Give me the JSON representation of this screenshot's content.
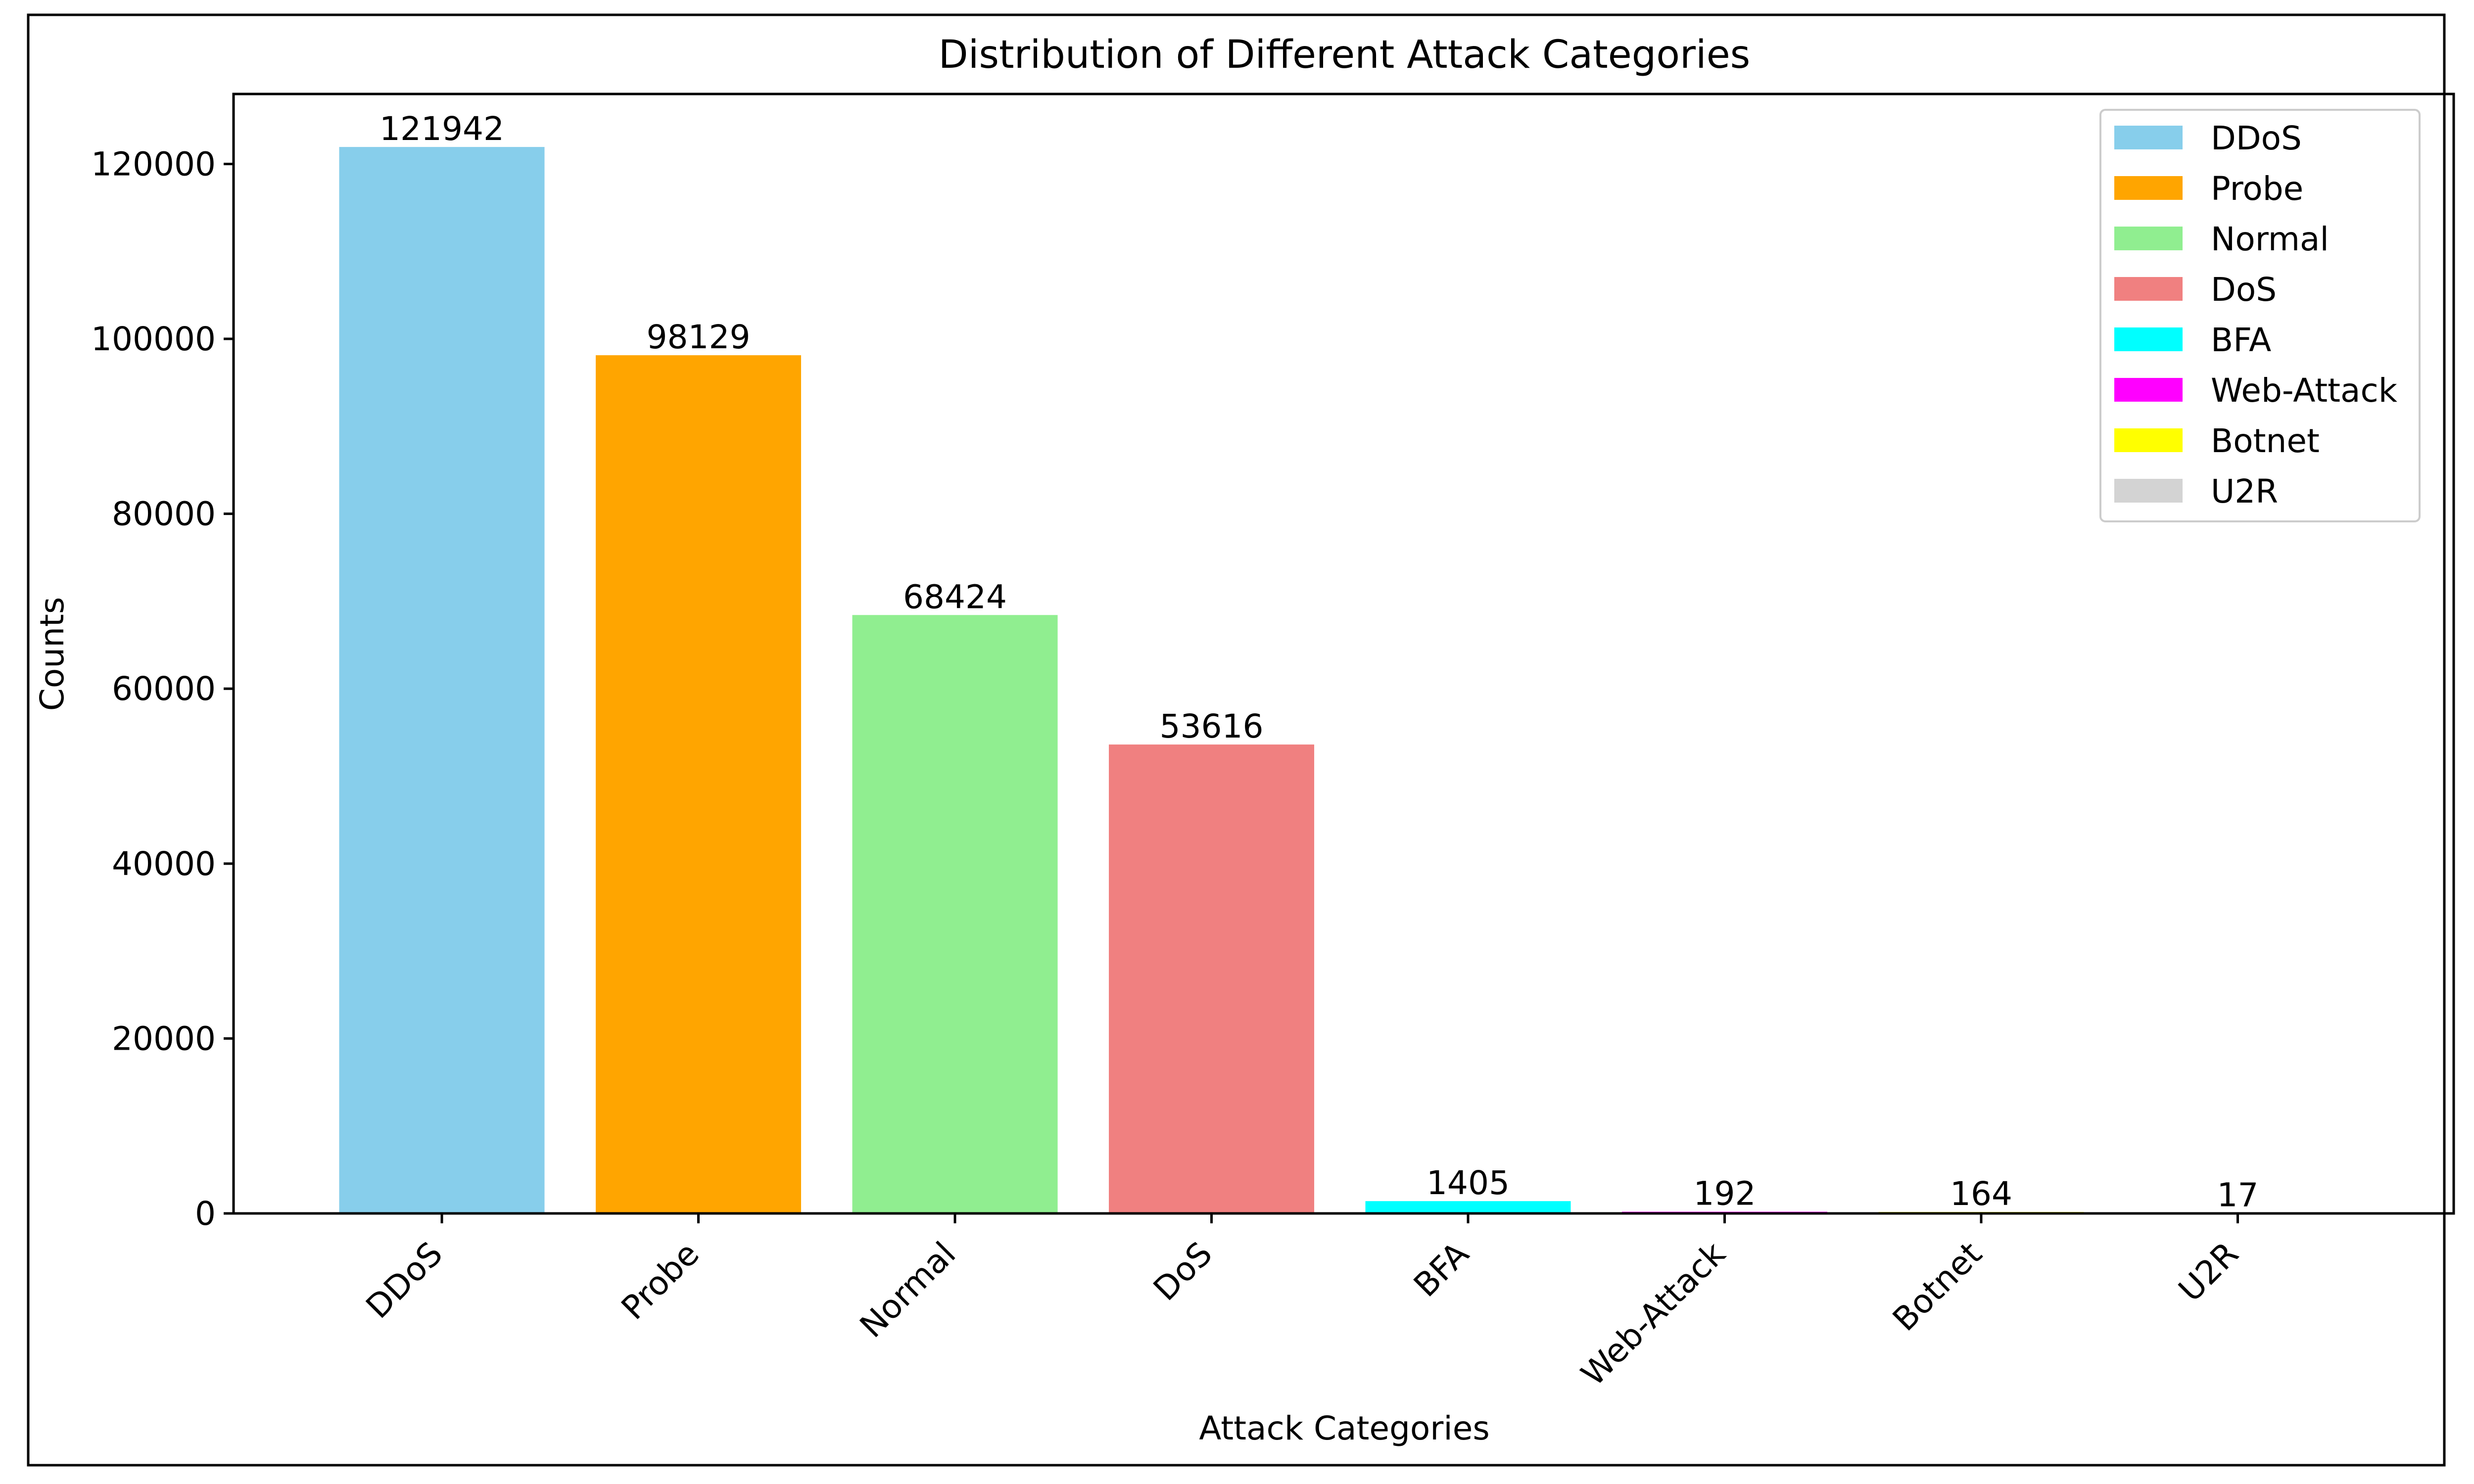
{
  "chart_data": {
    "type": "bar",
    "title": "Distribution of Different Attack Categories",
    "xlabel": "Attack Categories",
    "ylabel": "Counts",
    "categories": [
      "DDoS",
      "Probe",
      "Normal",
      "DoS",
      "BFA",
      "Web-Attack",
      "Botnet",
      "U2R"
    ],
    "values": [
      121942,
      98129,
      68424,
      53616,
      1405,
      192,
      164,
      17
    ],
    "value_labels": [
      "121942",
      "98129",
      "68424",
      "53616",
      "1405",
      "192",
      "164",
      "17"
    ],
    "colors": [
      "#87ceeb",
      "#ffa500",
      "#90ee90",
      "#f08080",
      "#00ffff",
      "#ff00ff",
      "#ffff00",
      "#d3d3d3"
    ],
    "ylim": [
      0,
      128000
    ],
    "yticks": [
      0,
      20000,
      40000,
      60000,
      80000,
      100000,
      120000
    ],
    "ytick_labels": [
      "0",
      "20000",
      "40000",
      "60000",
      "80000",
      "100000",
      "120000"
    ],
    "grid": false,
    "legend": {
      "placement": "top-right",
      "entries": [
        "DDoS",
        "Probe",
        "Normal",
        "DoS",
        "BFA",
        "Web-Attack",
        "Botnet",
        "U2R"
      ]
    }
  }
}
